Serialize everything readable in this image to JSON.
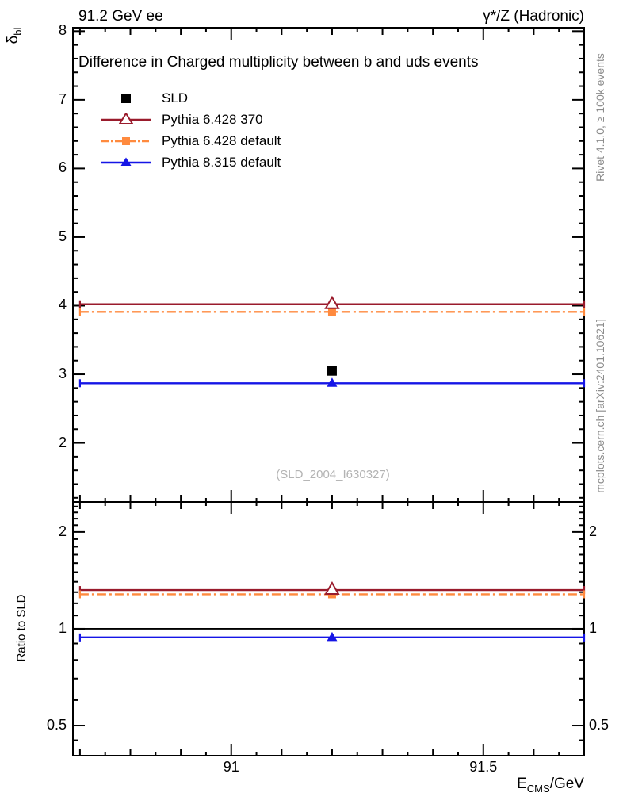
{
  "header": {
    "left": "91.2 GeV ee",
    "right": "γ*/Z (Hadronic)"
  },
  "title": "Difference in Charged multiplicity between b and uds events",
  "legend": {
    "items": [
      {
        "label": "SLD",
        "color": "#000000",
        "line": "none",
        "marker": "square-filled"
      },
      {
        "label": "Pythia 6.428 370",
        "color": "#9a1b2c",
        "line": "solid",
        "marker": "triangle-open"
      },
      {
        "label": "Pythia 6.428 default",
        "color": "#ff8a3e",
        "line": "dashdot",
        "marker": "square-filled"
      },
      {
        "label": "Pythia 8.315 default",
        "color": "#1515e6",
        "line": "solid",
        "marker": "triangle-filled"
      }
    ]
  },
  "watermark": "(SLD_2004_I630327)",
  "side_notes": {
    "top_right": "Rivet 4.1.0, ≥ 100k events",
    "bottom_right": "mcplots.cern.ch [arXiv:2401.10621]"
  },
  "axes": {
    "y_main_label": {
      "base": "δ",
      "sub": "bl"
    },
    "y_ratio_label": "Ratio to SLD",
    "x_label": {
      "base": "E",
      "sub": "CMS",
      "suffix": "/GeV"
    },
    "x_ticks": [
      {
        "value": 91,
        "label": "91"
      },
      {
        "value": 91.5,
        "label": "91.5"
      }
    ],
    "y_main_ticks": [
      {
        "value": 2,
        "label": "2"
      },
      {
        "value": 3,
        "label": "3"
      },
      {
        "value": 4,
        "label": "4"
      },
      {
        "value": 5,
        "label": "5"
      },
      {
        "value": 6,
        "label": "6"
      },
      {
        "value": 7,
        "label": "7"
      },
      {
        "value": 8,
        "label": "8"
      }
    ],
    "y_ratio_ticks": [
      {
        "value": 0.5,
        "label": "0.5"
      },
      {
        "value": 1,
        "label": "1"
      },
      {
        "value": 2,
        "label": "2"
      }
    ]
  },
  "chart_data": {
    "type": "line",
    "title": "Difference in Charged multiplicity between b and uds events",
    "xlabel": "E_CMS/GeV",
    "ylabel": "delta_bl",
    "ratio_ylabel": "Ratio to SLD",
    "x_range": [
      90.686,
      91.7
    ],
    "y_range_main": [
      1.14,
      8.05
    ],
    "y_scale_main": "linear",
    "y_range_ratio": [
      0.403,
      2.48
    ],
    "y_scale_ratio": "log",
    "bin": {
      "x_low": 90.7,
      "x_high": 91.7,
      "x_center": 91.2
    },
    "ratio_reference": 1.0,
    "series": [
      {
        "name": "SLD",
        "color": "#000000",
        "line": "none",
        "marker": "square-filled",
        "value": 3.05,
        "ratio": 1.0
      },
      {
        "name": "Pythia 6.428 370",
        "color": "#9a1b2c",
        "line": "solid",
        "marker": "triangle-open",
        "value": 4.02,
        "ratio": 1.32
      },
      {
        "name": "Pythia 6.428 default",
        "color": "#ff8a3e",
        "line": "dashdot",
        "marker": "square-filled",
        "value": 3.91,
        "ratio": 1.28
      },
      {
        "name": "Pythia 8.315 default",
        "color": "#1515e6",
        "line": "solid",
        "marker": "triangle-filled",
        "value": 2.87,
        "ratio": 0.94
      }
    ]
  }
}
